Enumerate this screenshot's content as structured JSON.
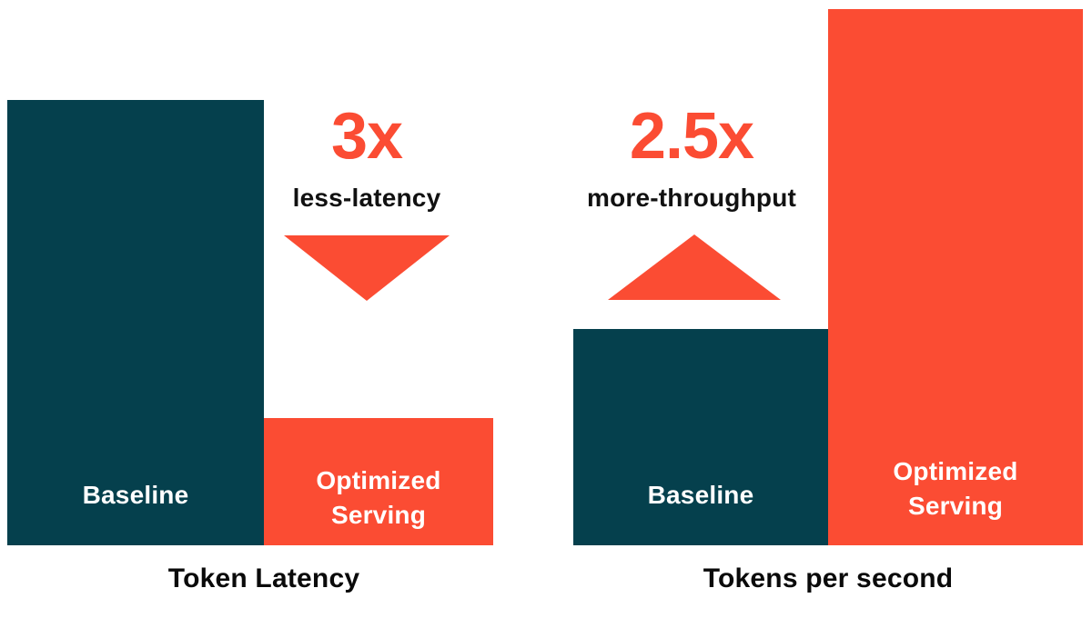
{
  "colors": {
    "background": "#ffffff",
    "baseline_bar": "#05404d",
    "optimized_bar": "#fb4c33",
    "multiplier_text": "#fb4c33",
    "caption_text": "#111111",
    "bar_label_text": "#ffffff",
    "title_text": "#0a0a0a"
  },
  "charts": [
    {
      "title": "Token Latency",
      "annotation": {
        "multiplier": "3x",
        "caption": "less-latency",
        "direction": "down"
      },
      "bars": [
        {
          "label": "Baseline",
          "color": "#05404d"
        },
        {
          "label": "Optimized Serving",
          "color": "#fb4c33"
        }
      ]
    },
    {
      "title": "Tokens per second",
      "annotation": {
        "multiplier": "2.5x",
        "caption": "more-throughput",
        "direction": "up"
      },
      "bars": [
        {
          "label": "Baseline",
          "color": "#05404d"
        },
        {
          "label": "Optimized Serving",
          "color": "#fb4c33"
        }
      ]
    }
  ],
  "chart_data": [
    {
      "type": "bar",
      "title": "Token Latency",
      "categories": [
        "Baseline",
        "Optimized Serving"
      ],
      "values_relative": [
        1.0,
        0.29
      ],
      "annotation": "3x less-latency",
      "annotation_direction": "down",
      "ylabel": "",
      "xlabel": "",
      "axes_shown": false,
      "grid": false,
      "legend": "none",
      "bar_colors": [
        "#05404d",
        "#fb4c33"
      ]
    },
    {
      "type": "bar",
      "title": "Tokens per second",
      "categories": [
        "Baseline",
        "Optimized Serving"
      ],
      "values_relative": [
        0.4,
        1.0
      ],
      "annotation": "2.5x more-throughput",
      "annotation_direction": "up",
      "ylabel": "",
      "xlabel": "",
      "axes_shown": false,
      "grid": false,
      "legend": "none",
      "bar_colors": [
        "#05404d",
        "#fb4c33"
      ]
    }
  ]
}
